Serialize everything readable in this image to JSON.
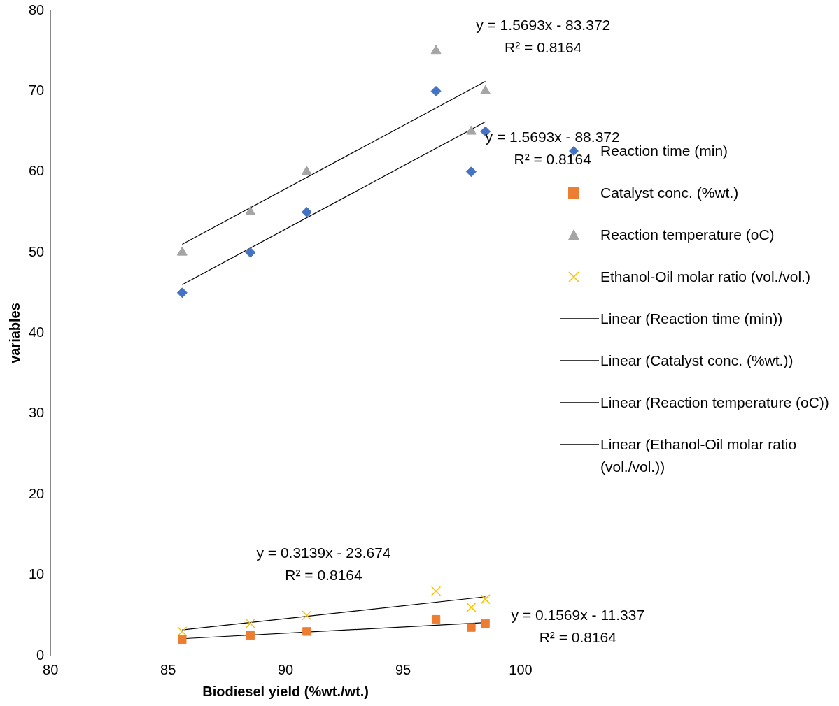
{
  "chart_data": {
    "type": "scatter",
    "xlabel": "Biodiesel yield (%wt./wt.)",
    "ylabel": "variables",
    "xlim": [
      80,
      100
    ],
    "xticks": [
      80,
      85,
      90,
      95,
      100
    ],
    "ylim": [
      0,
      80
    ],
    "yticks": [
      0,
      10,
      20,
      30,
      40,
      50,
      60,
      70,
      80
    ],
    "grid": false,
    "legend": "right",
    "series": [
      {
        "name": "Reaction time (min)",
        "type": "scatter",
        "marker": "diamond",
        "color": "#4472c4",
        "x": [
          85.6,
          88.5,
          90.9,
          96.4,
          97.9,
          98.5
        ],
        "values": [
          45,
          50,
          55,
          70,
          60,
          65
        ]
      },
      {
        "name": "Catalyst conc. (%wt.)",
        "type": "scatter",
        "marker": "square",
        "color": "#ed7d31",
        "x": [
          85.6,
          88.5,
          90.9,
          96.4,
          97.9,
          98.5
        ],
        "values": [
          2,
          2.5,
          3,
          4.5,
          3.5,
          4
        ]
      },
      {
        "name": "Reaction temperature (oC)",
        "type": "scatter",
        "marker": "triangle",
        "color": "#a5a5a5",
        "x": [
          85.6,
          88.5,
          90.9,
          96.4,
          97.9,
          98.5
        ],
        "values": [
          50,
          55,
          60,
          75,
          65,
          70
        ]
      },
      {
        "name": "Ethanol-Oil molar ratio (vol./vol.)",
        "type": "scatter",
        "marker": "cross",
        "color": "#ffc000",
        "x": [
          85.6,
          88.5,
          90.9,
          96.4,
          97.9,
          98.5
        ],
        "values": [
          3,
          4,
          5,
          8,
          6,
          7
        ]
      },
      {
        "name": "Linear (Reaction time (min))",
        "type": "line",
        "marker": "none",
        "color": "#000000",
        "x": [
          85.6,
          98.5
        ],
        "values": [
          46,
          66.2
        ]
      },
      {
        "name": "Linear (Catalyst conc. (%wt.))",
        "type": "line",
        "marker": "none",
        "color": "#000000",
        "x": [
          85.6,
          98.5
        ],
        "values": [
          2.1,
          4.1
        ]
      },
      {
        "name": "Linear (Reaction temperature (oC))",
        "type": "line",
        "marker": "none",
        "color": "#000000",
        "x": [
          85.6,
          98.5
        ],
        "values": [
          51,
          71.2
        ]
      },
      {
        "name": "Linear (Ethanol-Oil molar ratio (vol./vol.))",
        "type": "line",
        "marker": "none",
        "color": "#000000",
        "x": [
          85.6,
          98.5
        ],
        "values": [
          3.2,
          7.3
        ]
      }
    ],
    "annotations": [
      "y = 1.5693x - 83.372\nR² = 0.8164",
      "y = 1.5693x - 88.372\nR² = 0.8164",
      "y = 0.3139x - 23.674\nR² = 0.8164",
      "y = 0.1569x - 11.337\nR² = 0.8164"
    ]
  }
}
